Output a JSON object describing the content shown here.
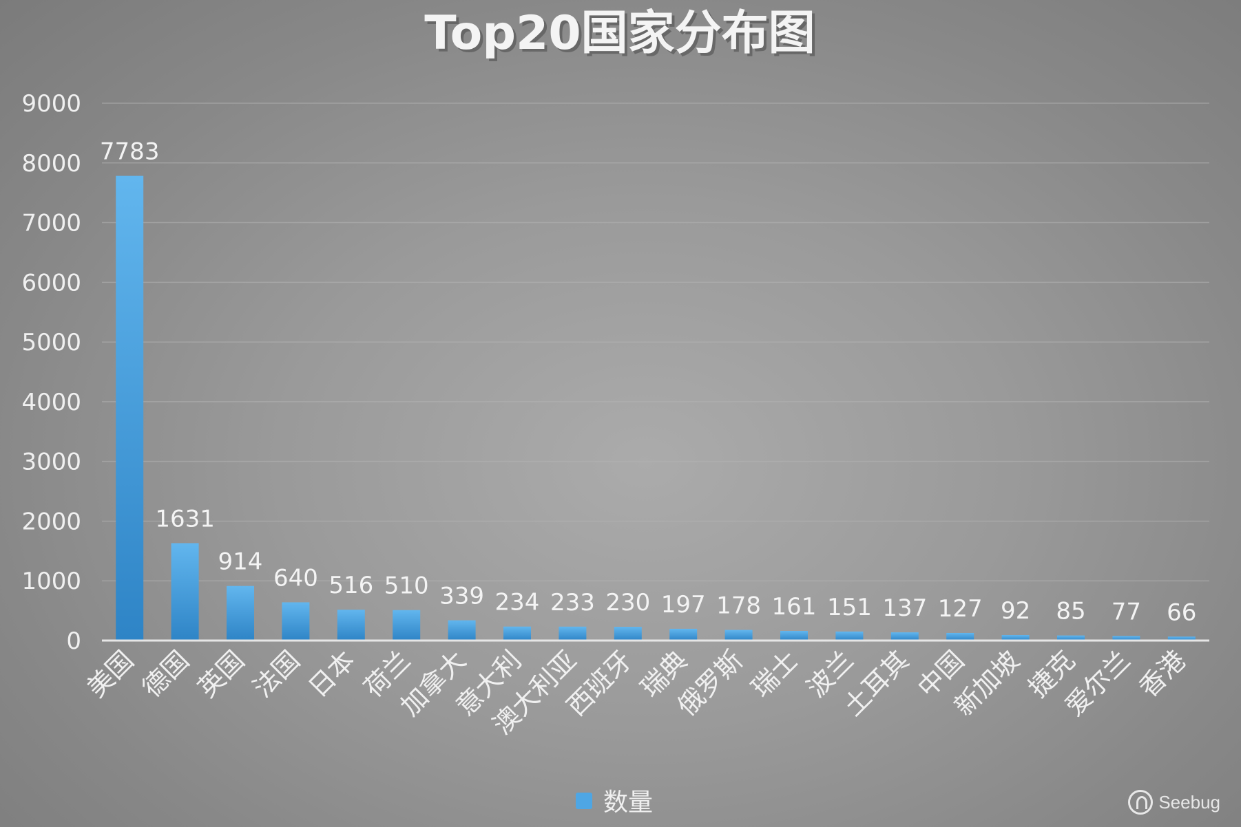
{
  "chart_data": {
    "type": "bar",
    "title": "Top20国家分布图",
    "categories": [
      "美国",
      "德国",
      "英国",
      "法国",
      "日本",
      "荷兰",
      "加拿大",
      "意大利",
      "澳大利亚",
      "西班牙",
      "瑞典",
      "俄罗斯",
      "瑞士",
      "波兰",
      "土耳其",
      "中国",
      "新加坡",
      "捷克",
      "爱尔兰",
      "香港"
    ],
    "series": [
      {
        "name": "数量",
        "values": [
          7783,
          1631,
          914,
          640,
          516,
          510,
          339,
          234,
          233,
          230,
          197,
          178,
          161,
          151,
          137,
          127,
          92,
          85,
          77,
          66
        ]
      }
    ],
    "ylim": [
      0,
      9000
    ],
    "yticks": [
      0,
      1000,
      2000,
      3000,
      4000,
      5000,
      6000,
      7000,
      8000,
      9000
    ],
    "xlabel": "",
    "ylabel": "",
    "grid": true,
    "legend": "bottom-center",
    "colors": {
      "bar_light": "#5fb3ec",
      "bar_dark": "#2f86c8",
      "legend": "#4ea6e4"
    }
  },
  "watermark": {
    "text": "Seebug",
    "icon": "seebug-logo-icon"
  }
}
